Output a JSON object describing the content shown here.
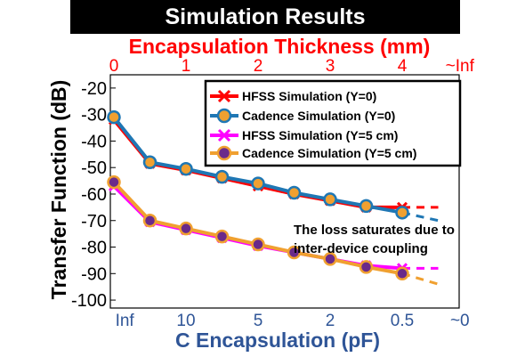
{
  "title": "Simulation Results",
  "chart_data": {
    "type": "line",
    "top_axis": {
      "label": "Encapsulation Thickness (mm)",
      "ticks": [
        "0",
        "1",
        "2",
        "3",
        "4",
        "~Inf"
      ],
      "color": "#ff0000"
    },
    "x_axis": {
      "label": "C Encapsulation (pF)",
      "ticks": [
        "Inf",
        "10",
        "5",
        "2",
        "0.5",
        "~0"
      ],
      "color": "#2f5597"
    },
    "y_axis": {
      "label": "Transfer Function (dB)",
      "ticks": [
        "-20",
        "-30",
        "-40",
        "-50",
        "-60",
        "-70",
        "-80",
        "-90",
        "-100"
      ],
      "ylim": [
        -103,
        -15
      ]
    },
    "x_index_range": [
      0,
      9
    ],
    "series": [
      {
        "name": "HFSS Simulation (Y=0)",
        "color": "#ff0000",
        "marker": "x",
        "style": "solid",
        "x": [
          0,
          1,
          2,
          3,
          4,
          5,
          6,
          7,
          8
        ],
        "y": [
          -32,
          -48.5,
          -51,
          -54,
          -57,
          -60,
          -62.5,
          -65,
          -65
        ],
        "extrapolation": {
          "x": [
            8,
            9
          ],
          "y": [
            -65,
            -65
          ]
        }
      },
      {
        "name": "Cadence Simulation (Y=0)",
        "color": "#1f77b4",
        "marker": "circle",
        "marker_fill": "#f0a030",
        "style": "solid",
        "x": [
          0,
          1,
          2,
          3,
          4,
          5,
          6,
          7,
          8
        ],
        "y": [
          -31,
          -48,
          -50.5,
          -53.5,
          -56,
          -59.5,
          -62,
          -64.5,
          -67
        ],
        "extrapolation": {
          "x": [
            8,
            9
          ],
          "y": [
            -67,
            -70
          ]
        }
      },
      {
        "name": "HFSS Simulation (Y=5 cm)",
        "color": "#ff00ff",
        "marker": "x",
        "style": "solid",
        "x": [
          0,
          1,
          2,
          3,
          4,
          5,
          6,
          7,
          8
        ],
        "y": [
          -57,
          -70.5,
          -73.5,
          -76.5,
          -79.5,
          -82,
          -84.5,
          -87,
          -88
        ],
        "extrapolation": {
          "x": [
            8,
            9
          ],
          "y": [
            -88,
            -88
          ]
        }
      },
      {
        "name": "Cadence Simulation (Y=5 cm)",
        "color": "#f0a030",
        "marker": "circle",
        "marker_fill": "#6a2a8a",
        "style": "solid",
        "x": [
          0,
          1,
          2,
          3,
          4,
          5,
          6,
          7,
          8
        ],
        "y": [
          -55.5,
          -70,
          -73,
          -76,
          -79,
          -82,
          -84.5,
          -87.5,
          -90
        ],
        "extrapolation": {
          "x": [
            8,
            9
          ],
          "y": [
            -90,
            -94
          ]
        }
      }
    ],
    "legend_position": "top-right",
    "annotation": [
      "The loss saturates due to",
      "inter-device coupling"
    ],
    "grid": false
  }
}
